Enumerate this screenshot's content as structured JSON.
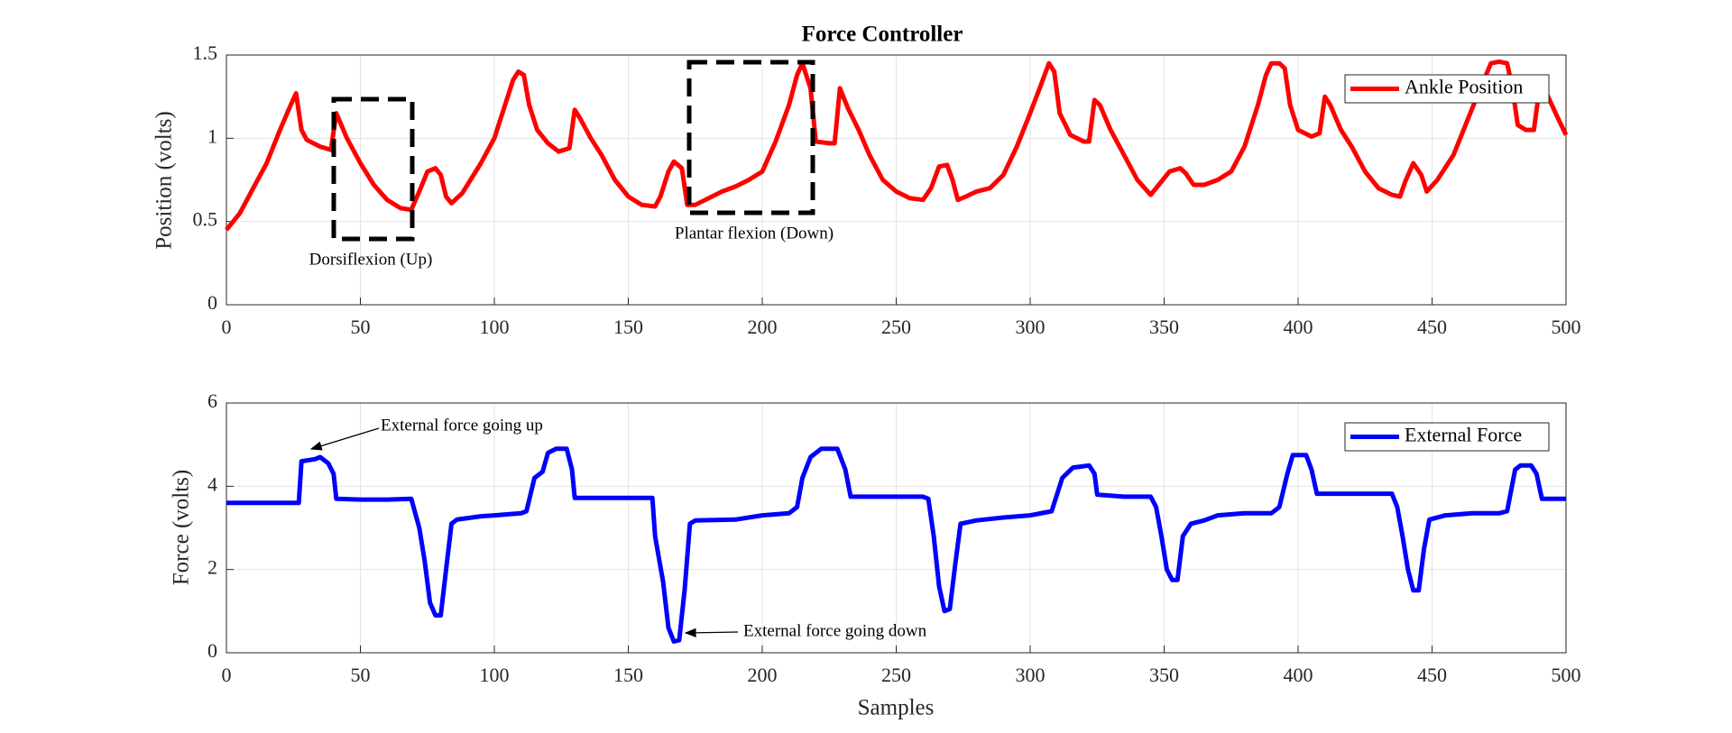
{
  "chart_data": [
    {
      "type": "line",
      "title": "Force Controller",
      "ylabel": "Position (volts)",
      "xlim": [
        0,
        500
      ],
      "xticks": [
        0,
        50,
        100,
        150,
        200,
        250,
        300,
        350,
        400,
        450,
        500
      ],
      "ylim": [
        0,
        1.5
      ],
      "yticks": [
        0,
        0.5,
        1,
        1.5
      ],
      "grid": true,
      "legend": "upper right",
      "annotations": [
        "Dorsiflexion (Up)",
        "Plantar flexion (Down)"
      ],
      "x": [
        0,
        5,
        10,
        15,
        20,
        24,
        26,
        28,
        30,
        35,
        39,
        41,
        45,
        50,
        55,
        60,
        65,
        69,
        72,
        75,
        78,
        80,
        82,
        84,
        88,
        95,
        100,
        104,
        107,
        109,
        111,
        113,
        116,
        120,
        124,
        128,
        130,
        132,
        136,
        140,
        145,
        150,
        155,
        160,
        162,
        165,
        167,
        170,
        172,
        175,
        180,
        185,
        190,
        195,
        200,
        205,
        210,
        213,
        215,
        218,
        220,
        225,
        227,
        229,
        232,
        236,
        240,
        245,
        250,
        255,
        260,
        263,
        266,
        269,
        271,
        273,
        276,
        280,
        285,
        290,
        295,
        300,
        304,
        307,
        309,
        311,
        315,
        320,
        322,
        324,
        326,
        330,
        335,
        340,
        345,
        348,
        352,
        356,
        358,
        361,
        365,
        370,
        375,
        380,
        385,
        388,
        390,
        393,
        395,
        397,
        400,
        405,
        408,
        410,
        412,
        416,
        420,
        425,
        430,
        435,
        438,
        440,
        443,
        446,
        448,
        452,
        458,
        463,
        468,
        472,
        475,
        478,
        480,
        482,
        485,
        488,
        490,
        493,
        497,
        500
      ],
      "series": [
        {
          "name": "Ankle Position",
          "color": "#ff0000",
          "values": [
            0.45,
            0.55,
            0.7,
            0.85,
            1.05,
            1.2,
            1.27,
            1.05,
            0.99,
            0.95,
            0.93,
            1.15,
            1.0,
            0.85,
            0.72,
            0.63,
            0.58,
            0.57,
            0.68,
            0.8,
            0.82,
            0.78,
            0.65,
            0.61,
            0.67,
            0.85,
            1.0,
            1.2,
            1.35,
            1.4,
            1.38,
            1.2,
            1.05,
            0.97,
            0.92,
            0.94,
            1.17,
            1.12,
            1.0,
            0.9,
            0.75,
            0.65,
            0.6,
            0.59,
            0.65,
            0.8,
            0.86,
            0.82,
            0.6,
            0.6,
            0.64,
            0.68,
            0.71,
            0.75,
            0.8,
            0.98,
            1.2,
            1.38,
            1.45,
            1.3,
            0.98,
            0.97,
            0.97,
            1.3,
            1.18,
            1.05,
            0.9,
            0.75,
            0.68,
            0.64,
            0.63,
            0.7,
            0.83,
            0.84,
            0.75,
            0.63,
            0.65,
            0.68,
            0.7,
            0.78,
            0.95,
            1.15,
            1.32,
            1.45,
            1.4,
            1.15,
            1.02,
            0.98,
            0.98,
            1.23,
            1.2,
            1.05,
            0.9,
            0.75,
            0.66,
            0.72,
            0.8,
            0.82,
            0.79,
            0.72,
            0.72,
            0.75,
            0.8,
            0.95,
            1.2,
            1.38,
            1.45,
            1.45,
            1.42,
            1.2,
            1.05,
            1.01,
            1.03,
            1.25,
            1.2,
            1.05,
            0.95,
            0.8,
            0.7,
            0.66,
            0.65,
            0.74,
            0.85,
            0.78,
            0.68,
            0.75,
            0.9,
            1.1,
            1.3,
            1.45,
            1.46,
            1.45,
            1.3,
            1.08,
            1.05,
            1.05,
            1.29,
            1.26,
            1.12,
            1.02
          ]
        }
      ]
    },
    {
      "type": "line",
      "xlabel": "Samples",
      "ylabel": "Force (volts)",
      "xlim": [
        0,
        500
      ],
      "xticks": [
        0,
        50,
        100,
        150,
        200,
        250,
        300,
        350,
        400,
        450,
        500
      ],
      "ylim": [
        0,
        6
      ],
      "yticks": [
        0,
        2,
        4,
        6
      ],
      "grid": true,
      "legend": "upper right",
      "annotations": [
        "External force going up",
        "External force going down"
      ],
      "x": [
        0,
        27,
        28,
        33,
        35,
        38,
        40,
        41,
        50,
        60,
        69,
        72,
        74,
        76,
        78,
        80,
        82,
        84,
        86,
        95,
        100,
        110,
        112,
        115,
        118,
        120,
        123,
        127,
        129,
        130,
        140,
        155,
        159,
        160,
        163,
        165,
        167,
        169,
        171,
        173,
        175,
        190,
        200,
        210,
        213,
        215,
        218,
        222,
        228,
        231,
        233,
        245,
        260,
        262,
        264,
        266,
        268,
        270,
        272,
        274,
        280,
        290,
        300,
        308,
        312,
        316,
        322,
        324,
        325,
        335,
        345,
        347,
        349,
        351,
        353,
        355,
        357,
        360,
        365,
        370,
        380,
        390,
        393,
        396,
        398,
        403,
        405,
        407,
        420,
        435,
        437,
        439,
        441,
        443,
        445,
        447,
        449,
        455,
        465,
        475,
        478,
        481,
        483,
        487,
        489,
        491,
        500
      ],
      "series": [
        {
          "name": "External Force",
          "color": "#0000ff",
          "values": [
            3.6,
            3.6,
            4.6,
            4.65,
            4.7,
            4.55,
            4.3,
            3.7,
            3.68,
            3.68,
            3.7,
            3.0,
            2.2,
            1.2,
            0.9,
            0.9,
            2.0,
            3.1,
            3.2,
            3.28,
            3.3,
            3.35,
            3.4,
            4.2,
            4.35,
            4.8,
            4.9,
            4.9,
            4.4,
            3.72,
            3.72,
            3.72,
            3.72,
            2.8,
            1.7,
            0.6,
            0.27,
            0.3,
            1.5,
            3.1,
            3.18,
            3.2,
            3.3,
            3.35,
            3.5,
            4.2,
            4.7,
            4.9,
            4.9,
            4.4,
            3.75,
            3.75,
            3.75,
            3.7,
            2.8,
            1.6,
            1.0,
            1.05,
            2.1,
            3.1,
            3.18,
            3.25,
            3.3,
            3.4,
            4.2,
            4.45,
            4.5,
            4.3,
            3.8,
            3.75,
            3.75,
            3.5,
            2.8,
            2.0,
            1.75,
            1.75,
            2.8,
            3.1,
            3.18,
            3.3,
            3.35,
            3.35,
            3.5,
            4.3,
            4.75,
            4.75,
            4.4,
            3.82,
            3.82,
            3.82,
            3.5,
            2.8,
            2.0,
            1.5,
            1.5,
            2.5,
            3.2,
            3.3,
            3.35,
            3.35,
            3.4,
            4.4,
            4.5,
            4.5,
            4.3,
            3.7,
            3.7
          ]
        }
      ]
    }
  ]
}
